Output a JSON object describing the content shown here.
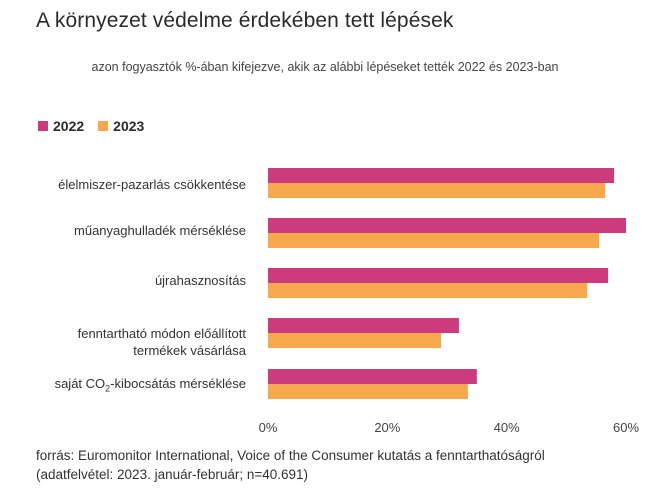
{
  "title": "A környezet védelme érdekében tett lépések",
  "subtitle": "azon fogyasztók %-ában kifejezve, akik az alábbi lépéseket tették 2022 és 2023-ban",
  "colors": {
    "series_2022": "#cc3b7b",
    "series_2023": "#f7a84c"
  },
  "source_line1": "forrás: Euromonitor International, Voice of the Consumer kutatás a fenntarthatóságról",
  "source_line2": "(adatfelvétel: 2023. január-február; n=40.691)",
  "chart_data": {
    "type": "bar",
    "orientation": "horizontal",
    "categories": [
      "élelmiszer-pazarlás csökkentése",
      "műanyaghulladék mérséklése",
      "újrahasznosítás",
      "fenntartható módon előállított termékek vásárlása",
      "saját CO₂-kibocsátás mérséklése"
    ],
    "series": [
      {
        "name": "2022",
        "values": [
          58,
          60,
          57,
          32,
          35
        ]
      },
      {
        "name": "2023",
        "values": [
          56.5,
          55.5,
          53.5,
          29,
          33.5
        ]
      }
    ],
    "xlim": [
      0,
      60
    ],
    "xticks": [
      "0%",
      "20%",
      "40%",
      "60%"
    ],
    "legend": "top-left",
    "grid": false
  }
}
